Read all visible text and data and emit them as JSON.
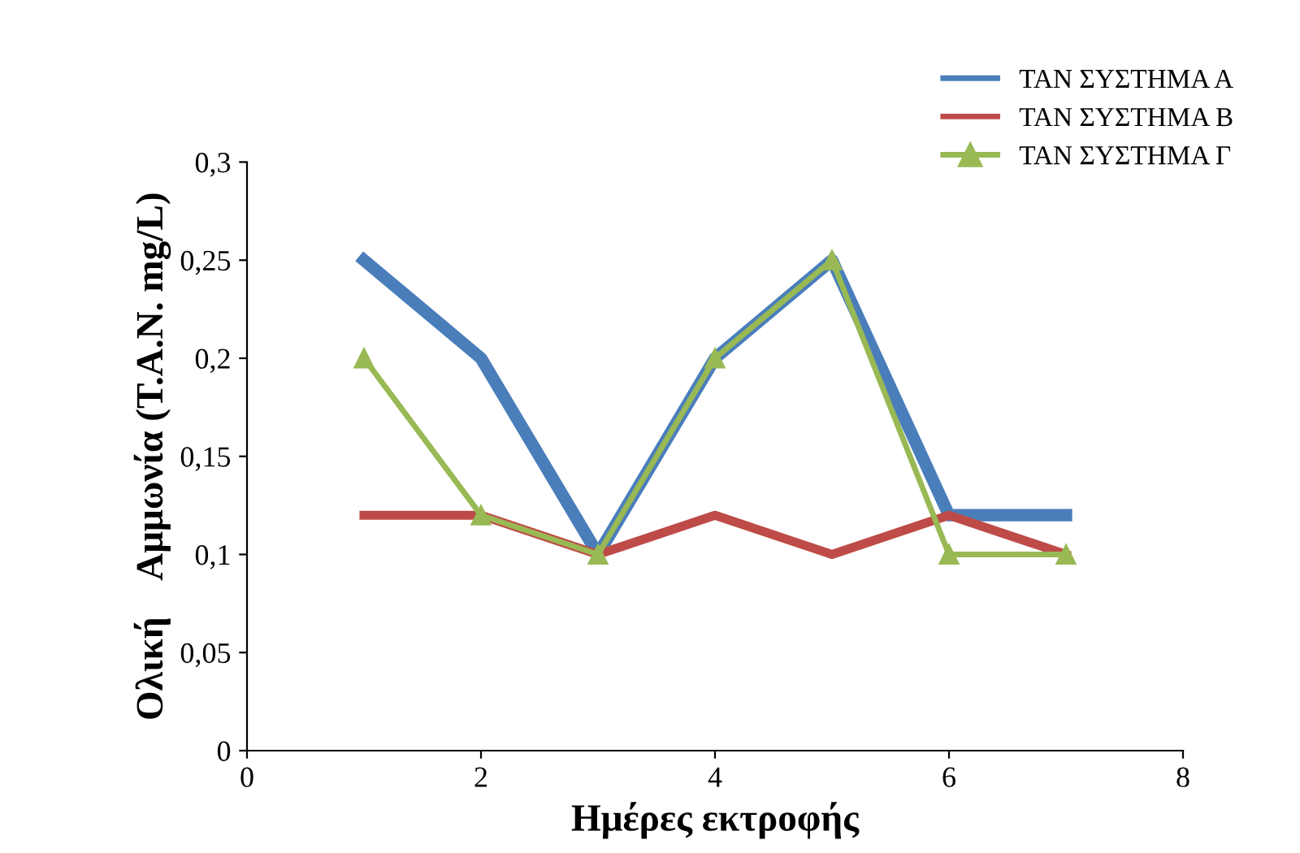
{
  "chart_data": {
    "type": "line",
    "xlabel": "Ημέρες εκτροφής",
    "ylabel": "Ολική    Αμμωνία (T.A.N. mg/L)",
    "x": [
      1,
      2,
      3,
      4,
      5,
      6,
      7
    ],
    "series": [
      {
        "name": "ΤΑΝ ΣΥΣΤΗΜΑ Α",
        "color": "#4a7ebb",
        "values": [
          0.25,
          0.2,
          0.1,
          0.2,
          0.25,
          0.12,
          0.12
        ],
        "marker": "none"
      },
      {
        "name": "ΤΑΝ ΣΥΣΤΗΜΑ Β",
        "color": "#be4b48",
        "values": [
          0.12,
          0.12,
          0.1,
          0.12,
          0.1,
          0.12,
          0.1
        ],
        "marker": "none"
      },
      {
        "name": "ΤΑΝ ΣΥΣΤΗΜΑ Γ",
        "color": "#98b954",
        "values": [
          0.2,
          0.12,
          0.1,
          0.2,
          0.25,
          0.1,
          0.1
        ],
        "marker": "triangle"
      }
    ],
    "xlim": [
      0,
      8
    ],
    "xticks": [
      0,
      2,
      4,
      6,
      8
    ],
    "ylim": [
      0,
      0.3
    ],
    "yticks": [
      0,
      {
        "value": 0.05,
        "label": "0,05"
      },
      {
        "value": 0.1,
        "label": "0,1"
      },
      {
        "value": 0.15,
        "label": "0,15"
      },
      {
        "value": 0.2,
        "label": "0,2"
      },
      {
        "value": 0.25,
        "label": "0,25"
      },
      {
        "value": 0.3,
        "label": "0,3"
      }
    ],
    "grid": false,
    "legend": "top right",
    "line_style": "solid"
  }
}
